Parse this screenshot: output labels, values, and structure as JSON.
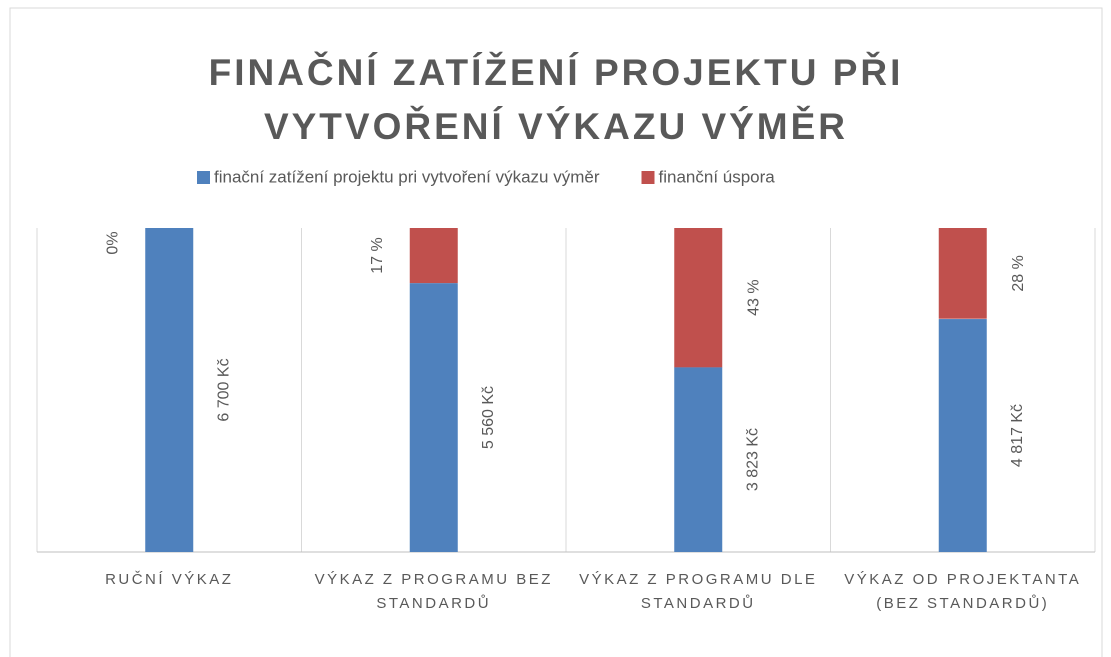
{
  "chart_data": {
    "type": "bar",
    "title": [
      "FINAČNÍ ZATÍŽENÍ PROJEKTU PŘI",
      "VYTVOŘENÍ VÝKAZU VÝMĚR"
    ],
    "categories": [
      "RUČNÍ VÝKAZ",
      "VÝKAZ Z PROGRAMU BEZ STANDARDŮ",
      "VÝKAZ Z PROGRAMU DLE STANDARDŮ",
      "VÝKAZ OD PROJEKTANTA (BEZ STANDARDŮ)"
    ],
    "series": [
      {
        "name": "finační zatížení projektu pri vytvoření výkazu výměr",
        "color": "#4f81bd",
        "values": [
          6700,
          5560,
          3823,
          4817
        ],
        "value_labels": [
          "6 700 Kč",
          "5 560 Kč",
          "3 823 Kč",
          "4 817 Kč"
        ]
      },
      {
        "name": "finanční úspora",
        "color": "#c0504d",
        "axis": "y2",
        "values": [
          0,
          17,
          43,
          28
        ],
        "value_labels": [
          "0%",
          "17 %",
          "43 %",
          "28 %"
        ]
      }
    ],
    "ylim": [
      0,
      6700
    ],
    "y2lim": [
      100,
      0
    ],
    "grid": true,
    "legend": "top"
  }
}
